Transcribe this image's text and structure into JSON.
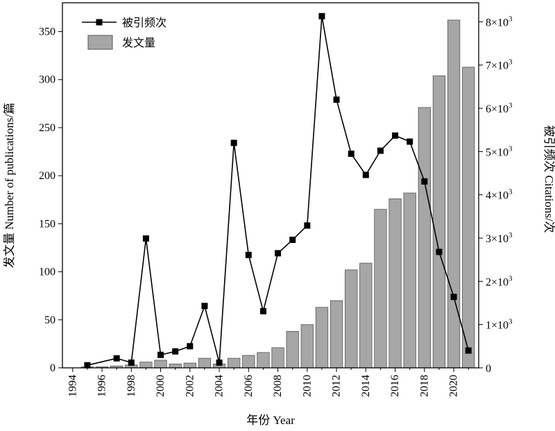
{
  "chart_data": {
    "type": "bar+line",
    "xlabel": "年份 Year",
    "ylabel_left": "发文量 Number of publications/篇",
    "ylabel_right": "被引频次 Citations/次",
    "x_ticks": [
      "1994",
      "1996",
      "1998",
      "2000",
      "2002",
      "2004",
      "2006",
      "2008",
      "2010",
      "2012",
      "2014",
      "2016",
      "2018",
      "2020"
    ],
    "y_left_ticks": [
      "0",
      "50",
      "100",
      "150",
      "200",
      "250",
      "300",
      "350"
    ],
    "y_right_ticks": [
      {
        "base": "0",
        "exp": ""
      },
      {
        "base": "1×10",
        "exp": "3"
      },
      {
        "base": "2×10",
        "exp": "3"
      },
      {
        "base": "3×10",
        "exp": "3"
      },
      {
        "base": "4×10",
        "exp": "3"
      },
      {
        "base": "5×10",
        "exp": "3"
      },
      {
        "base": "6×10",
        "exp": "3"
      },
      {
        "base": "7×10",
        "exp": "3"
      },
      {
        "base": "8×10",
        "exp": "3"
      }
    ],
    "xlim": [
      1993.3,
      2021.7
    ],
    "y_left_lim": [
      0,
      380
    ],
    "y_right_lim": [
      0,
      8440
    ],
    "legend": {
      "position": "top-left",
      "line_label": "被引频次",
      "bar_label": "发文量"
    },
    "colors": {
      "bar": "#a6a6a6",
      "bar_edge": "#555555",
      "line": "#000000"
    },
    "series": [
      {
        "name": "发文量",
        "kind": "bar",
        "axis": "left",
        "x": [
          1995,
          1996,
          1997,
          1998,
          1999,
          2000,
          2001,
          2002,
          2003,
          2004,
          2005,
          2006,
          2007,
          2008,
          2009,
          2010,
          2011,
          2012,
          2013,
          2014,
          2015,
          2016,
          2017,
          2018,
          2019,
          2020,
          2021
        ],
        "values": [
          1,
          1,
          2,
          3,
          6,
          8,
          4,
          5,
          10,
          4,
          10,
          13,
          16,
          21,
          38,
          45,
          63,
          70,
          102,
          109,
          165,
          176,
          182,
          271,
          304,
          362,
          313
        ]
      },
      {
        "name": "被引频次",
        "kind": "line",
        "axis": "right",
        "x": [
          1995,
          1997,
          1998,
          1999,
          2000,
          2001,
          2002,
          2003,
          2004,
          2005,
          2006,
          2007,
          2008,
          2009,
          2010,
          2011,
          2012,
          2013,
          2014,
          2015,
          2016,
          2017,
          2018,
          2019,
          2020,
          2021
        ],
        "values": [
          60,
          220,
          120,
          2990,
          300,
          380,
          500,
          1430,
          120,
          5200,
          2610,
          1310,
          2650,
          2960,
          3290,
          8130,
          6200,
          4950,
          4460,
          5020,
          5370,
          5230,
          4310,
          2680,
          1640,
          400
        ]
      }
    ]
  }
}
